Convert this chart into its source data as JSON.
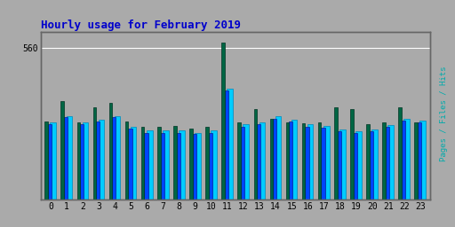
{
  "title": "Hourly usage for February 2019",
  "title_color": "#0000cc",
  "outer_bg_color": "#aaaaaa",
  "inner_bg_color": "#bbbbbb",
  "plot_bg_color": "#aaaaaa",
  "ylabel_right": "Pages / Files / Hits",
  "categories": [
    0,
    1,
    2,
    3,
    4,
    5,
    6,
    7,
    8,
    9,
    10,
    11,
    12,
    13,
    14,
    15,
    16,
    17,
    18,
    19,
    20,
    21,
    22,
    23
  ],
  "hits": [
    285,
    310,
    285,
    295,
    310,
    270,
    255,
    255,
    255,
    248,
    255,
    410,
    278,
    285,
    308,
    295,
    278,
    272,
    260,
    252,
    260,
    275,
    300,
    293
  ],
  "files": [
    278,
    305,
    278,
    288,
    305,
    262,
    248,
    248,
    248,
    242,
    248,
    405,
    270,
    278,
    300,
    288,
    270,
    265,
    252,
    245,
    252,
    268,
    292,
    285
  ],
  "pages": [
    290,
    365,
    285,
    340,
    358,
    290,
    270,
    268,
    272,
    262,
    268,
    580,
    285,
    335,
    300,
    285,
    282,
    285,
    340,
    335,
    278,
    285,
    342,
    285
  ],
  "hits_color": "#00ccff",
  "files_color": "#0044ff",
  "pages_color": "#006644",
  "hits_edge": "#0088bb",
  "files_edge": "#002299",
  "pages_edge": "#003322",
  "ylim_max": 620,
  "ytick_val": 560,
  "bar_width": 0.28,
  "font_size_title": 9,
  "font_size_tick": 7
}
